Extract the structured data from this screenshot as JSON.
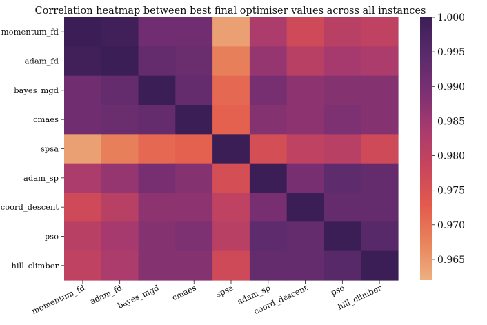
{
  "chart_data": {
    "type": "heatmap",
    "title": "Correlation heatmap between best final optimiser values across all instances",
    "xlabel": "",
    "ylabel": "",
    "rows": [
      "momentum_fd",
      "adam_fd",
      "bayes_mgd",
      "cmaes",
      "spsa",
      "adam_sp",
      "coord_descent",
      "pso",
      "hill_climber"
    ],
    "cols": [
      "momentum_fd",
      "adam_fd",
      "bayes_mgd",
      "cmaes",
      "spsa",
      "adam_sp",
      "coord_descent",
      "pso",
      "hill_climber"
    ],
    "values": [
      [
        1.0,
        0.999,
        0.991,
        0.991,
        0.964,
        0.983,
        0.977,
        0.981,
        0.98
      ],
      [
        0.999,
        1.0,
        0.993,
        0.992,
        0.968,
        0.986,
        0.981,
        0.984,
        0.983
      ],
      [
        0.991,
        0.993,
        1.0,
        0.993,
        0.971,
        0.99,
        0.987,
        0.988,
        0.988
      ],
      [
        0.991,
        0.992,
        0.993,
        1.0,
        0.972,
        0.988,
        0.987,
        0.989,
        0.988
      ],
      [
        0.964,
        0.968,
        0.971,
        0.972,
        1.0,
        0.976,
        0.98,
        0.981,
        0.977
      ],
      [
        0.983,
        0.986,
        0.99,
        0.988,
        0.976,
        1.0,
        0.99,
        0.994,
        0.993
      ],
      [
        0.977,
        0.981,
        0.987,
        0.987,
        0.98,
        0.99,
        1.0,
        0.993,
        0.993
      ],
      [
        0.981,
        0.984,
        0.988,
        0.989,
        0.981,
        0.994,
        0.993,
        1.0,
        0.995
      ],
      [
        0.98,
        0.983,
        0.988,
        0.988,
        0.977,
        0.993,
        0.993,
        0.995,
        1.0
      ]
    ],
    "colorbar": {
      "vmin": 0.962,
      "vmax": 1.0,
      "ticks": [
        1.0,
        0.995,
        0.99,
        0.985,
        0.98,
        0.975,
        0.97,
        0.965
      ],
      "tick_labels": [
        "1.000",
        "0.995",
        "0.990",
        "0.985",
        "0.980",
        "0.975",
        "0.970",
        "0.965"
      ]
    },
    "colormap": "flare_r",
    "colormap_stops": [
      "#edb081",
      "#e8845b",
      "#e35a4d",
      "#c9455c",
      "#a83b6e",
      "#7c3072",
      "#5a2a6b",
      "#3b1e56"
    ]
  }
}
